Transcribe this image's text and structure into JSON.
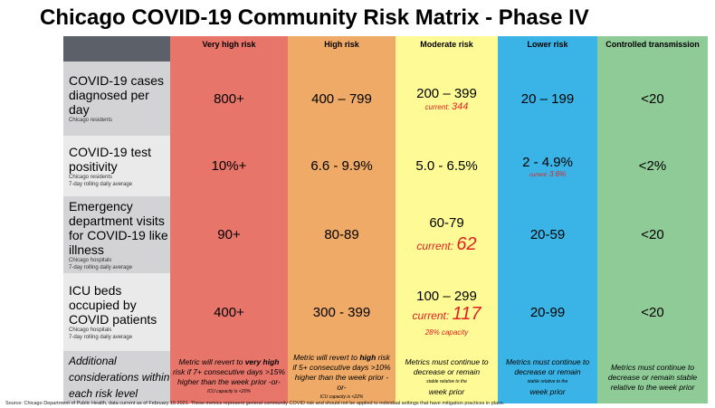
{
  "title": "Chicago COVID-19 Community Risk Matrix - Phase IV",
  "columns": [
    "Very high risk",
    "High risk",
    "Moderate risk",
    "Lower risk",
    "Controlled transmission"
  ],
  "colors": {
    "very_high": "#e8756a",
    "high": "#eeaa66",
    "moderate": "#fefb97",
    "lower": "#3ab4e6",
    "controlled": "#8ecb97",
    "header": "#5c6068",
    "current": "#e02020"
  },
  "rows": [
    {
      "label": "COVID-19 cases diagnosed per day",
      "sub1": "Chicago residents",
      "sub2": "",
      "values": [
        "800+",
        "400 – 799",
        "200 – 399",
        "20 – 199",
        "<20"
      ],
      "current_prefix": "current:",
      "current": "344"
    },
    {
      "label": "COVID-19 test positivity",
      "sub1": "Chicago residents",
      "sub2": "7-day rolling daily average",
      "values": [
        "10%+",
        "6.6 - 9.9%",
        "5.0 - 6.5%",
        "2 - 4.9%",
        "<2%"
      ],
      "current_prefix": "current:",
      "current": "3.6%"
    },
    {
      "label": "Emergency department visits for COVID-19 like illness",
      "sub1": "Chicago hospitals",
      "sub2": "7-day rolling daily average",
      "values": [
        "90+",
        "80-89",
        "60-79",
        "20-59",
        "<20"
      ],
      "current_prefix": "current:",
      "current": "62"
    },
    {
      "label": "ICU beds occupied by COVID patients",
      "sub1": "Chicago hospitals",
      "sub2": "7-day rolling daily average",
      "values": [
        "400+",
        "300 - 399",
        "100 – 299",
        "20-99",
        "<20"
      ],
      "current_prefix": "current:",
      "current": "117",
      "capacity": "28% capacity"
    }
  ],
  "considerations": {
    "label": "Additional considerations within each risk level",
    "very_high_a": "Metric will revert to ",
    "very_high_b": "very high",
    "very_high_c": " risk if 7+ consecutive days >15% higher than the week prior -or-",
    "very_high_small": "ICU capacity is <20%",
    "high_a": "Metric will revert to ",
    "high_b": "high",
    "high_c": " risk if 5+ consecutive days >10% higher than the week prior -or-",
    "high_small": "ICU capacity is <22%",
    "moderate": "Metrics must continue to decrease or remain",
    "moderate_small": "stable relative to the",
    "moderate_end": "week prior",
    "lower": "Metrics must continue to decrease or remain",
    "lower_small": "stable relative to the",
    "lower_end": "week prior",
    "controlled": "Metrics must continue to decrease or remain stable relative to the week prior"
  },
  "source": "Source: Chicago Department of Public Health, data current as of February 15 2021. These metrics represent general community COVID risk and should not be applied to individual settings that have mitigation practices in place."
}
